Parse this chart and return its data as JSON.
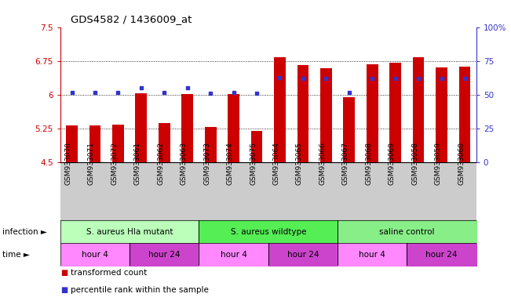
{
  "title": "GDS4582 / 1436009_at",
  "samples": [
    "GSM933070",
    "GSM933071",
    "GSM933072",
    "GSM933061",
    "GSM933062",
    "GSM933063",
    "GSM933073",
    "GSM933074",
    "GSM933075",
    "GSM933064",
    "GSM933065",
    "GSM933066",
    "GSM933067",
    "GSM933068",
    "GSM933069",
    "GSM933058",
    "GSM933059",
    "GSM933060"
  ],
  "bar_values": [
    5.31,
    5.31,
    5.34,
    6.04,
    5.37,
    6.01,
    5.28,
    6.01,
    5.2,
    6.84,
    6.67,
    6.6,
    5.95,
    6.68,
    6.72,
    6.84,
    6.62,
    6.63
  ],
  "percentile_values": [
    52,
    52,
    52,
    55,
    52,
    55,
    51,
    52,
    51,
    63,
    62,
    62,
    52,
    62,
    62,
    62,
    62,
    62
  ],
  "ylim": [
    4.5,
    7.5
  ],
  "yticks": [
    4.5,
    5.25,
    6.0,
    6.75,
    7.5
  ],
  "ytick_labels": [
    "4.5",
    "5.25",
    "6",
    "6.75",
    "7.5"
  ],
  "right_yticks": [
    0,
    25,
    50,
    75,
    100
  ],
  "right_ytick_labels": [
    "0",
    "25",
    "50",
    "75",
    "100%"
  ],
  "dotted_lines": [
    5.25,
    6.0,
    6.75
  ],
  "bar_color": "#cc0000",
  "percentile_color": "#3333cc",
  "left_axis_color": "#cc0000",
  "right_axis_color": "#3333cc",
  "bg_plot": "#ffffff",
  "bg_sample_row": "#cccccc",
  "infection_groups": [
    {
      "label": "S. aureus Hla mutant",
      "start": 0,
      "end": 6,
      "color": "#bbffbb"
    },
    {
      "label": "S. aureus wildtype",
      "start": 6,
      "end": 12,
      "color": "#55ee55"
    },
    {
      "label": "saline control",
      "start": 12,
      "end": 18,
      "color": "#88ee88"
    }
  ],
  "time_groups": [
    {
      "label": "hour 4",
      "start": 0,
      "end": 3,
      "color": "#ff88ff"
    },
    {
      "label": "hour 24",
      "start": 3,
      "end": 6,
      "color": "#cc44cc"
    },
    {
      "label": "hour 4",
      "start": 6,
      "end": 9,
      "color": "#ff88ff"
    },
    {
      "label": "hour 24",
      "start": 9,
      "end": 12,
      "color": "#cc44cc"
    },
    {
      "label": "hour 4",
      "start": 12,
      "end": 15,
      "color": "#ff88ff"
    },
    {
      "label": "hour 24",
      "start": 15,
      "end": 18,
      "color": "#cc44cc"
    }
  ],
  "legend_items": [
    {
      "label": "transformed count",
      "color": "#cc0000"
    },
    {
      "label": "percentile rank within the sample",
      "color": "#3333cc"
    }
  ],
  "infection_label": "infection",
  "time_label": "time",
  "arrow": "►"
}
